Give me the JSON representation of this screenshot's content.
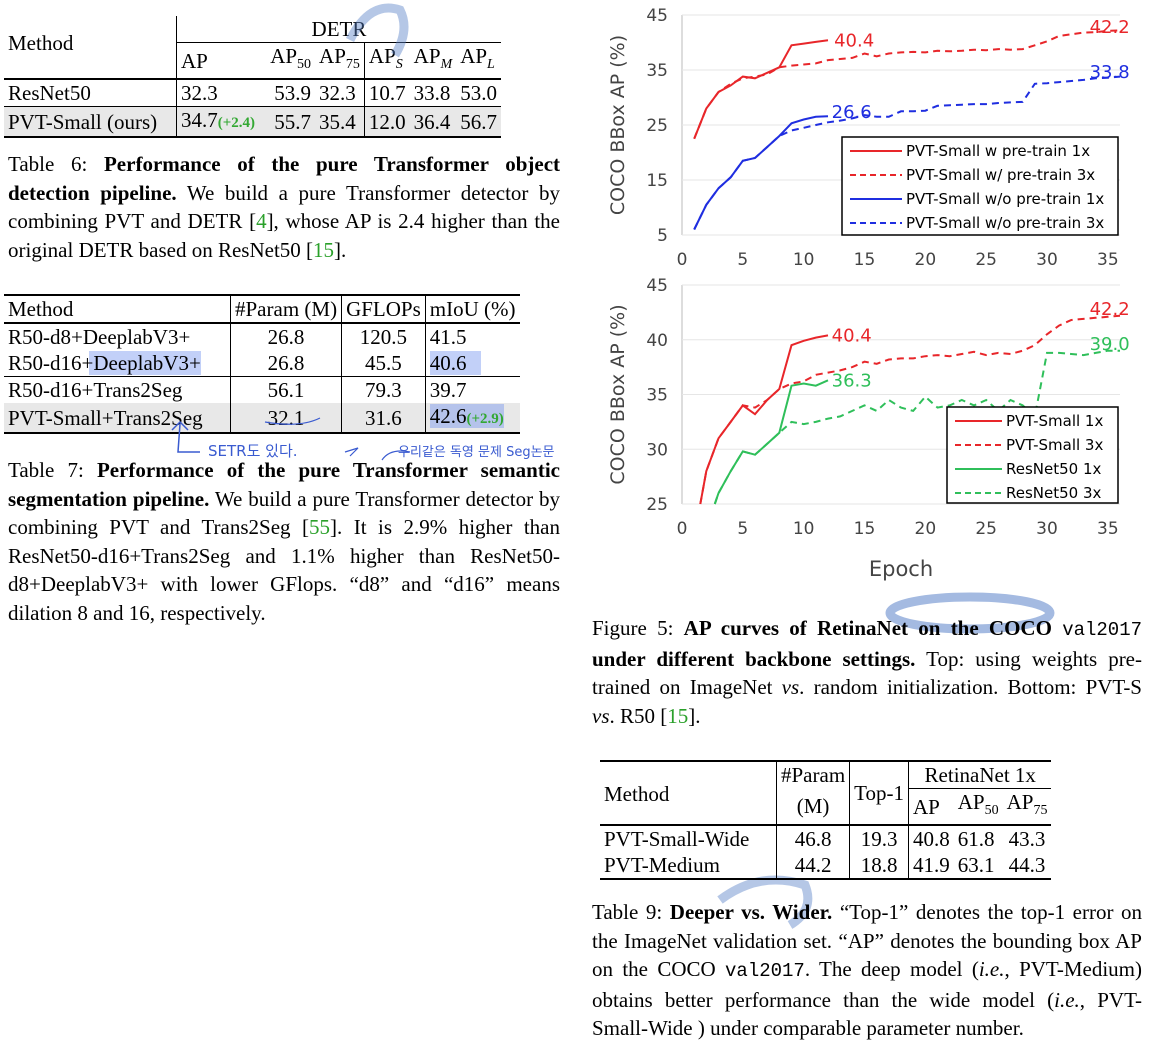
{
  "table6": {
    "header_method": "Method",
    "header_group": "DETR",
    "cols": [
      "AP",
      "AP50",
      "AP75",
      "APS",
      "APM",
      "APL"
    ],
    "rows": [
      {
        "method": "ResNet50",
        "ap": "32.3",
        "gain": "",
        "v": [
          "53.9",
          "32.3",
          "10.7",
          "33.8",
          "53.0"
        ]
      },
      {
        "method": "PVT-Small (ours)",
        "ap": "34.7",
        "gain": "(+2.4)",
        "v": [
          "55.7",
          "35.4",
          "12.0",
          "36.4",
          "56.7"
        ]
      }
    ],
    "caption_label": "Table 6:",
    "caption_bold": "Performance of the pure Transformer object detection pipeline.",
    "caption_text1": "We build a pure Transformer detector by combining PVT and DETR [",
    "caption_ref1": "4",
    "caption_text2": "], whose AP is 2.4 higher than the original DETR based on ResNet50 [",
    "caption_ref2": "15",
    "caption_text3": "]."
  },
  "table7": {
    "headers": [
      "Method",
      "#Param (M)",
      "GFLOPs",
      "mIoU (%)"
    ],
    "rows": [
      {
        "method": "R50-d8+DeeplabV3+",
        "param": "26.8",
        "gflops": "120.5",
        "miou": "41.5",
        "gain": ""
      },
      {
        "method": "R50-d16+DeeplabV3+",
        "param": "26.8",
        "gflops": "45.5",
        "miou": "40.6",
        "gain": ""
      },
      {
        "method": "R50-d16+Trans2Seg",
        "param": "56.1",
        "gflops": "79.3",
        "miou": "39.7",
        "gain": ""
      },
      {
        "method": "PVT-Small+Trans2Seg",
        "param": "32.1",
        "gflops": "31.6",
        "miou": "42.6",
        "gain": "(+2.9)"
      }
    ],
    "note1": "SETR도 있다.",
    "note2": "우리같은 독영 문제 Seg논문",
    "caption_label": "Table 7:",
    "caption_bold": "Performance of the pure Transformer semantic segmentation pipeline.",
    "caption_text1": "We build a pure Transformer detector by combining PVT and Trans2Seg [",
    "caption_ref1": "55",
    "caption_text2": "]. It is 2.9% higher than ResNet50-d16+Trans2Seg and 1.1% higher than ResNet50-d8+DeeplabV3+ with lower GFlops. “d8” and “d16” means dilation 8 and 16, respectively."
  },
  "figure5": {
    "caption_label": "Figure 5:",
    "caption_bold": "AP curves of RetinaNet on the COCO",
    "caption_mono": "val2017",
    "caption_bold2": "under different backbone settings.",
    "caption_text1": "Top: using weights pre-trained on ImageNet ",
    "caption_vs1": "vs",
    "caption_text2": ". random initialization. Bottom: PVT-S ",
    "caption_vs2": "vs",
    "caption_text3": ". R50 [",
    "caption_ref": "15",
    "caption_text4": "]."
  },
  "chart_data": [
    {
      "type": "line",
      "ylabel": "COCO BBox AP (%)",
      "xlim": [
        0,
        36
      ],
      "ylim": [
        5,
        45
      ],
      "xticks": [
        0,
        5,
        10,
        15,
        20,
        25,
        30,
        35
      ],
      "yticks": [
        5,
        15,
        25,
        35,
        45
      ],
      "legend_position": "bottom-right",
      "series": [
        {
          "name": "PVT-Small w pre-train 1x",
          "color": "#e8262a",
          "dash": false,
          "x": [
            1,
            2,
            3,
            4,
            5,
            6,
            7,
            8,
            9,
            10,
            11,
            12
          ],
          "y": [
            22.5,
            28,
            31,
            32.2,
            33.8,
            33.5,
            34.5,
            35.5,
            39.5,
            39.8,
            40.1,
            40.4
          ]
        },
        {
          "name": "PVT-Small w/ pre-train 3x",
          "color": "#e8262a",
          "dash": true,
          "x": [
            1,
            2,
            3,
            4,
            5,
            6,
            7,
            8,
            9,
            10,
            11,
            12,
            13,
            14,
            15,
            16,
            17,
            18,
            19,
            20,
            21,
            22,
            23,
            24,
            25,
            26,
            27,
            28,
            29,
            30,
            31,
            32,
            33,
            34,
            35,
            36
          ],
          "y": [
            22.5,
            28,
            31,
            32.5,
            33.5,
            33.8,
            34.2,
            35.5,
            35.8,
            36,
            36.2,
            36.8,
            37,
            37.2,
            38,
            37.5,
            38,
            38.2,
            38.3,
            38.2,
            38.5,
            38.4,
            38.5,
            38.7,
            38.6,
            38.8,
            38.7,
            38.8,
            39.5,
            40.2,
            41.2,
            41.5,
            41.8,
            41.9,
            42.1,
            42.2
          ]
        },
        {
          "name": "PVT-Small w/o pre-train 1x",
          "color": "#1f2ee0",
          "dash": false,
          "x": [
            1,
            2,
            3,
            4,
            5,
            6,
            7,
            8,
            9,
            10,
            11,
            12
          ],
          "y": [
            6,
            10.5,
            13.5,
            15.5,
            18.5,
            19,
            21,
            23,
            25.3,
            26,
            26.5,
            26.6
          ]
        },
        {
          "name": "PVT-Small w/o pre-train 3x",
          "color": "#1f2ee0",
          "dash": true,
          "x": [
            1,
            2,
            3,
            4,
            5,
            6,
            7,
            8,
            9,
            10,
            11,
            12,
            13,
            14,
            15,
            16,
            17,
            18,
            19,
            20,
            21,
            22,
            23,
            24,
            25,
            26,
            27,
            28,
            29,
            30,
            31,
            32,
            33,
            34,
            35,
            36
          ],
          "y": [
            6,
            10.5,
            13.5,
            15.5,
            18.5,
            19,
            21,
            23,
            24,
            24.5,
            25,
            25.5,
            25.8,
            26.2,
            26.8,
            26.5,
            26.5,
            27.5,
            27.5,
            27.6,
            28.5,
            28.6,
            28.7,
            28.8,
            28.8,
            29,
            29.1,
            29.2,
            32.5,
            32.6,
            32.8,
            33,
            33.2,
            33.5,
            33.6,
            33.8
          ]
        }
      ],
      "annotations": [
        {
          "text": "40.4",
          "x": 12.5,
          "y": 40.4,
          "color": "#e8262a"
        },
        {
          "text": "42.2",
          "x": 33.5,
          "y": 42.8,
          "color": "#e8262a"
        },
        {
          "text": "33.8",
          "x": 33.5,
          "y": 34.6,
          "color": "#1f2ee0"
        },
        {
          "text": "26.6",
          "x": 12.3,
          "y": 27.4,
          "color": "#1f2ee0"
        }
      ]
    },
    {
      "type": "line",
      "xlabel": "Epoch",
      "ylabel": "COCO BBox AP (%)",
      "xlim": [
        0,
        36
      ],
      "ylim": [
        25,
        45
      ],
      "xticks": [
        0,
        5,
        10,
        15,
        20,
        25,
        30,
        35
      ],
      "yticks": [
        25,
        30,
        35,
        40,
        45
      ],
      "legend_position": "bottom-right",
      "series": [
        {
          "name": "PVT-Small 1x",
          "color": "#e8262a",
          "dash": false,
          "x": [
            1.5,
            2,
            3,
            4,
            5,
            6,
            7,
            8,
            9,
            10,
            11,
            12
          ],
          "y": [
            25,
            28,
            31,
            32.5,
            34,
            33.2,
            34.5,
            35.5,
            39.5,
            39.9,
            40.2,
            40.4
          ]
        },
        {
          "name": "PVT-Small 3x",
          "color": "#e8262a",
          "dash": true,
          "x": [
            1.5,
            2,
            3,
            4,
            5,
            6,
            7,
            8,
            9,
            10,
            11,
            12,
            13,
            14,
            15,
            16,
            17,
            18,
            19,
            20,
            21,
            22,
            23,
            24,
            25,
            26,
            27,
            28,
            29,
            30,
            31,
            32,
            33,
            34,
            35,
            36
          ],
          "y": [
            25,
            28,
            31,
            32.5,
            34,
            33.8,
            34.5,
            35.5,
            36,
            36.2,
            36.8,
            37,
            37.2,
            37.5,
            38,
            37.8,
            38.2,
            38.3,
            38.3,
            38.5,
            38.6,
            38.5,
            38.7,
            38.9,
            38.6,
            38.8,
            38.7,
            39,
            39.5,
            40.5,
            41.3,
            41.8,
            41.9,
            42,
            42.1,
            42.2
          ]
        },
        {
          "name": "ResNet50 1x",
          "color": "#2fbf5a",
          "dash": false,
          "x": [
            2.7,
            3,
            4,
            5,
            6,
            7,
            8,
            9,
            10,
            11,
            12
          ],
          "y": [
            25,
            26,
            28,
            29.8,
            29.5,
            30.5,
            31.5,
            35.8,
            36,
            35.8,
            36.3
          ]
        },
        {
          "name": "ResNet50 3x",
          "color": "#2fbf5a",
          "dash": true,
          "x": [
            2.7,
            3,
            4,
            5,
            6,
            7,
            8,
            9,
            10,
            11,
            12,
            13,
            14,
            15,
            16,
            17,
            18,
            19,
            20,
            21,
            22,
            23,
            24,
            25,
            26,
            27,
            28,
            29,
            30,
            31,
            32,
            33,
            34,
            35,
            36
          ],
          "y": [
            25,
            26,
            28,
            29.8,
            29.5,
            30.5,
            31.5,
            32.5,
            32.3,
            32.5,
            32.8,
            33,
            33.5,
            34,
            33.5,
            34.5,
            33.8,
            33.5,
            34.8,
            33.8,
            34,
            34.5,
            34,
            34.5,
            33.5,
            34.5,
            34,
            33,
            38.8,
            38.8,
            38.7,
            38.6,
            38.8,
            39,
            39.0
          ]
        }
      ],
      "annotations": [
        {
          "text": "40.4",
          "x": 12.3,
          "y": 40.4,
          "color": "#e8262a"
        },
        {
          "text": "42.2",
          "x": 33.5,
          "y": 42.8,
          "color": "#e8262a"
        },
        {
          "text": "39.0",
          "x": 33.5,
          "y": 39.6,
          "color": "#2fbf5a"
        },
        {
          "text": "36.3",
          "x": 12.3,
          "y": 36.3,
          "color": "#2fbf5a"
        }
      ]
    }
  ],
  "table9": {
    "header_method": "Method",
    "header_param1": "#Param",
    "header_param2": "(M)",
    "header_top1": "Top-1",
    "header_group": "RetinaNet 1x",
    "cols": [
      "AP",
      "AP50",
      "AP75"
    ],
    "rows": [
      {
        "method": "PVT-Small-Wide",
        "param": "46.8",
        "top1": "19.3",
        "v": [
          "40.8",
          "61.8",
          "43.3"
        ]
      },
      {
        "method": "PVT-Medium",
        "param": "44.2",
        "top1": "18.8",
        "v": [
          "41.9",
          "63.1",
          "44.3"
        ]
      }
    ],
    "caption_label": "Table 9:",
    "caption_bold": "Deeper vs. Wider.",
    "caption_text1": "“Top-1” denotes the top-1 error on the ImageNet validation set. “AP” denotes the bounding box AP on the COCO ",
    "caption_mono": "val2017",
    "caption_text2": ". The deep model (",
    "caption_ie1": "i.e.",
    "caption_text3": ", PVT-Medium) obtains better performance than the wide model (",
    "caption_ie2": "i.e.",
    "caption_text4": ", PVT-Small-Wide ) under comparable parameter number."
  },
  "colors": {
    "gain": "#33a833",
    "ref": "#2aa02a",
    "highlight": "#7896f0",
    "pen_note": "#3a5bd0"
  }
}
